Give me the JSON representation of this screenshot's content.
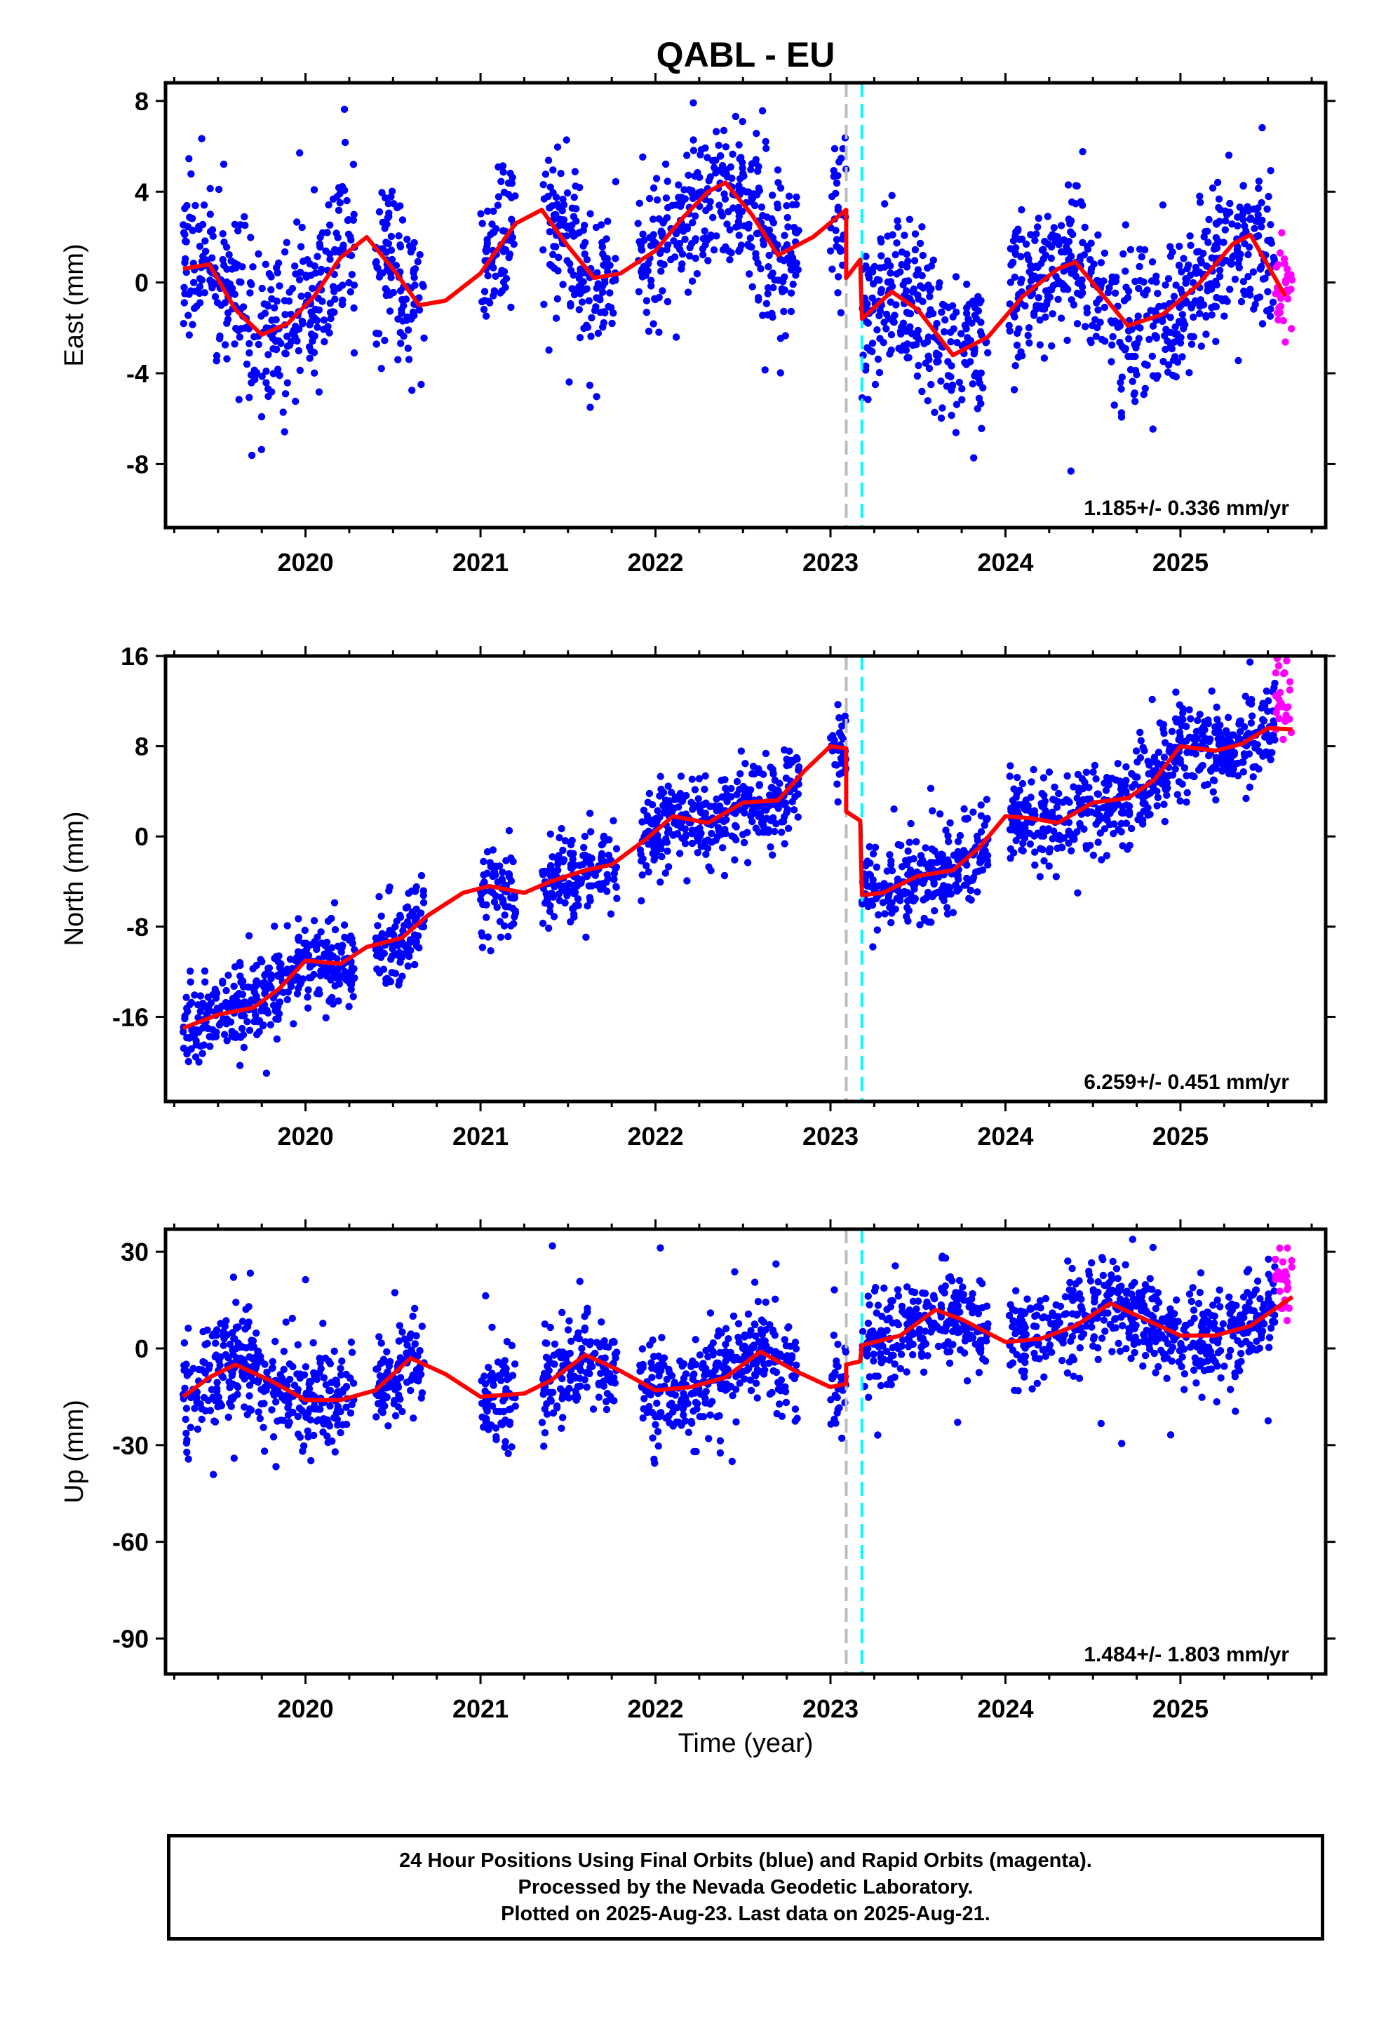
{
  "title": "QABL - EU",
  "xlabel": "Time (year)",
  "footer": {
    "line1": "24 Hour Positions Using Final Orbits (blue) and Rapid Orbits (magenta).",
    "line2": "Processed by the Nevada Geodetic Laboratory.",
    "line3": "Plotted on 2025-Aug-23. Last data on 2025-Aug-21."
  },
  "colors": {
    "final": "#0000ff",
    "rapid": "#ff00ff",
    "model": "#ff0000",
    "event_gray": "#bbbbbb",
    "event_cyan": "#00ffff"
  },
  "chart_data": [
    {
      "type": "scatter",
      "component": "east",
      "ylabel": "East (mm)",
      "rate": "1.185+/- 0.336 mm/yr",
      "xlim": [
        2019.2,
        2025.83
      ],
      "ylim": [
        -10.8,
        8.8
      ],
      "yticks": [
        "8",
        "4",
        "0",
        "-4",
        "-8"
      ],
      "ytick_values": [
        8,
        4,
        0,
        -4,
        -8
      ],
      "xticks": [
        "2020",
        "2021",
        "2022",
        "2023",
        "2024",
        "2025"
      ],
      "xtick_values": [
        2020,
        2021,
        2022,
        2023,
        2024,
        2025
      ],
      "events": [
        {
          "x": 2023.09,
          "color": "gray"
        },
        {
          "x": 2023.18,
          "color": "cyan"
        }
      ],
      "model": {
        "x": [
          2019.3,
          2019.45,
          2019.6,
          2019.75,
          2019.9,
          2020.05,
          2020.2,
          2020.35,
          2020.5,
          2020.65,
          2020.8,
          2021.0,
          2021.2,
          2021.35,
          2021.5,
          2021.65,
          2021.8,
          2022.0,
          2022.15,
          2022.3,
          2022.4,
          2022.55,
          2022.7,
          2022.9,
          2023.09,
          2023.09,
          2023.17,
          2023.18,
          2023.35,
          2023.5,
          2023.7,
          2023.9,
          2024.1,
          2024.3,
          2024.4,
          2024.55,
          2024.7,
          2024.9,
          2025.1,
          2025.3,
          2025.4,
          2025.6
        ],
        "y": [
          0.6,
          0.8,
          -1.2,
          -2.3,
          -1.8,
          -0.6,
          1.1,
          2.0,
          0.6,
          -1.0,
          -0.8,
          0.4,
          2.6,
          3.2,
          1.6,
          0.2,
          0.4,
          1.4,
          2.8,
          4.0,
          4.4,
          3.0,
          1.2,
          2.0,
          3.2,
          0.2,
          1.0,
          -1.6,
          -0.4,
          -1.2,
          -3.2,
          -2.4,
          -0.6,
          0.6,
          0.9,
          -0.5,
          -1.9,
          -1.4,
          -0.1,
          1.7,
          2.1,
          -0.6
        ]
      },
      "series": [
        {
          "name": "final",
          "color": "#0000ff",
          "n": 1900,
          "noise": 1.7,
          "outlier": 5
        },
        {
          "name": "rapid",
          "color": "#ff00ff",
          "x_range": [
            2025.54,
            2025.64
          ],
          "n": 28,
          "noise": 1.1
        }
      ]
    },
    {
      "type": "scatter",
      "component": "north",
      "ylabel": "North (mm)",
      "rate": "6.259+/- 0.451 mm/yr",
      "xlim": [
        2019.2,
        2025.83
      ],
      "ylim": [
        -23.5,
        16.0
      ],
      "yticks": [
        "16",
        "8",
        "0",
        "-8",
        "-16"
      ],
      "ytick_values": [
        16,
        8,
        0,
        -8,
        -16
      ],
      "xticks": [
        "2020",
        "2021",
        "2022",
        "2023",
        "2024",
        "2025"
      ],
      "xtick_values": [
        2020,
        2021,
        2022,
        2023,
        2024,
        2025
      ],
      "events": [
        {
          "x": 2023.09,
          "color": "gray"
        },
        {
          "x": 2023.18,
          "color": "cyan"
        }
      ],
      "model": {
        "x": [
          2019.3,
          2019.5,
          2019.7,
          2019.85,
          2020.0,
          2020.2,
          2020.35,
          2020.55,
          2020.7,
          2020.9,
          2021.05,
          2021.25,
          2021.4,
          2021.6,
          2021.75,
          2021.95,
          2022.1,
          2022.3,
          2022.5,
          2022.7,
          2022.85,
          2023.0,
          2023.09,
          2023.09,
          2023.17,
          2023.18,
          2023.3,
          2023.5,
          2023.7,
          2023.85,
          2024.0,
          2024.15,
          2024.3,
          2024.5,
          2024.7,
          2024.85,
          2025.0,
          2025.2,
          2025.35,
          2025.5,
          2025.64
        ],
        "y": [
          -17.0,
          -15.8,
          -15.2,
          -13.5,
          -11.0,
          -11.3,
          -9.8,
          -9.0,
          -7.0,
          -5.0,
          -4.4,
          -5.0,
          -4.0,
          -3.0,
          -2.5,
          -0.2,
          1.8,
          1.2,
          3.0,
          3.2,
          5.8,
          8.0,
          7.8,
          2.2,
          1.4,
          -5.2,
          -5.0,
          -3.5,
          -3.0,
          -1.0,
          1.8,
          1.6,
          1.2,
          3.0,
          3.4,
          5.0,
          8.0,
          7.6,
          8.2,
          9.6,
          9.5
        ]
      },
      "series": [
        {
          "name": "final",
          "color": "#0000ff",
          "n": 1900,
          "noise": 1.9,
          "outlier": 4
        },
        {
          "name": "rapid",
          "color": "#ff00ff",
          "x_range": [
            2025.54,
            2025.64
          ],
          "n": 28,
          "noise": 2.0
        }
      ]
    },
    {
      "type": "scatter",
      "component": "up",
      "ylabel": "Up (mm)",
      "rate": "1.484+/- 1.803 mm/yr",
      "xlim": [
        2019.2,
        2025.83
      ],
      "ylim": [
        -101,
        37
      ],
      "yticks": [
        "30",
        "0",
        "-30",
        "-60",
        "-90"
      ],
      "ytick_values": [
        30,
        0,
        -30,
        -60,
        -90
      ],
      "xticks": [
        "2020",
        "2021",
        "2022",
        "2023",
        "2024",
        "2025"
      ],
      "xtick_values": [
        2020,
        2021,
        2022,
        2023,
        2024,
        2025
      ],
      "events": [
        {
          "x": 2023.09,
          "color": "gray"
        },
        {
          "x": 2023.18,
          "color": "cyan"
        }
      ],
      "model": {
        "x": [
          2019.3,
          2019.45,
          2019.6,
          2019.8,
          2020.0,
          2020.2,
          2020.4,
          2020.6,
          2020.8,
          2021.0,
          2021.25,
          2021.4,
          2021.6,
          2021.8,
          2022.0,
          2022.2,
          2022.4,
          2022.6,
          2022.8,
          2023.0,
          2023.09,
          2023.09,
          2023.17,
          2023.18,
          2023.4,
          2023.6,
          2023.75,
          2024.0,
          2024.2,
          2024.4,
          2024.6,
          2024.8,
          2025.0,
          2025.2,
          2025.4,
          2025.64
        ],
        "y": [
          -15,
          -9,
          -5,
          -10,
          -16,
          -16,
          -13,
          -3,
          -8,
          -15,
          -14,
          -10,
          -2,
          -7,
          -13,
          -12,
          -9,
          -1,
          -7,
          -12,
          -11,
          -5,
          -4,
          1,
          4,
          12,
          9,
          2,
          3,
          7,
          14,
          9,
          4,
          4,
          7,
          16
        ]
      },
      "series": [
        {
          "name": "final",
          "color": "#0000ff",
          "n": 1900,
          "noise": 7.5,
          "outlier": 30
        },
        {
          "name": "rapid",
          "color": "#ff00ff",
          "x_range": [
            2025.54,
            2025.64
          ],
          "n": 28,
          "noise": 8
        }
      ]
    }
  ]
}
